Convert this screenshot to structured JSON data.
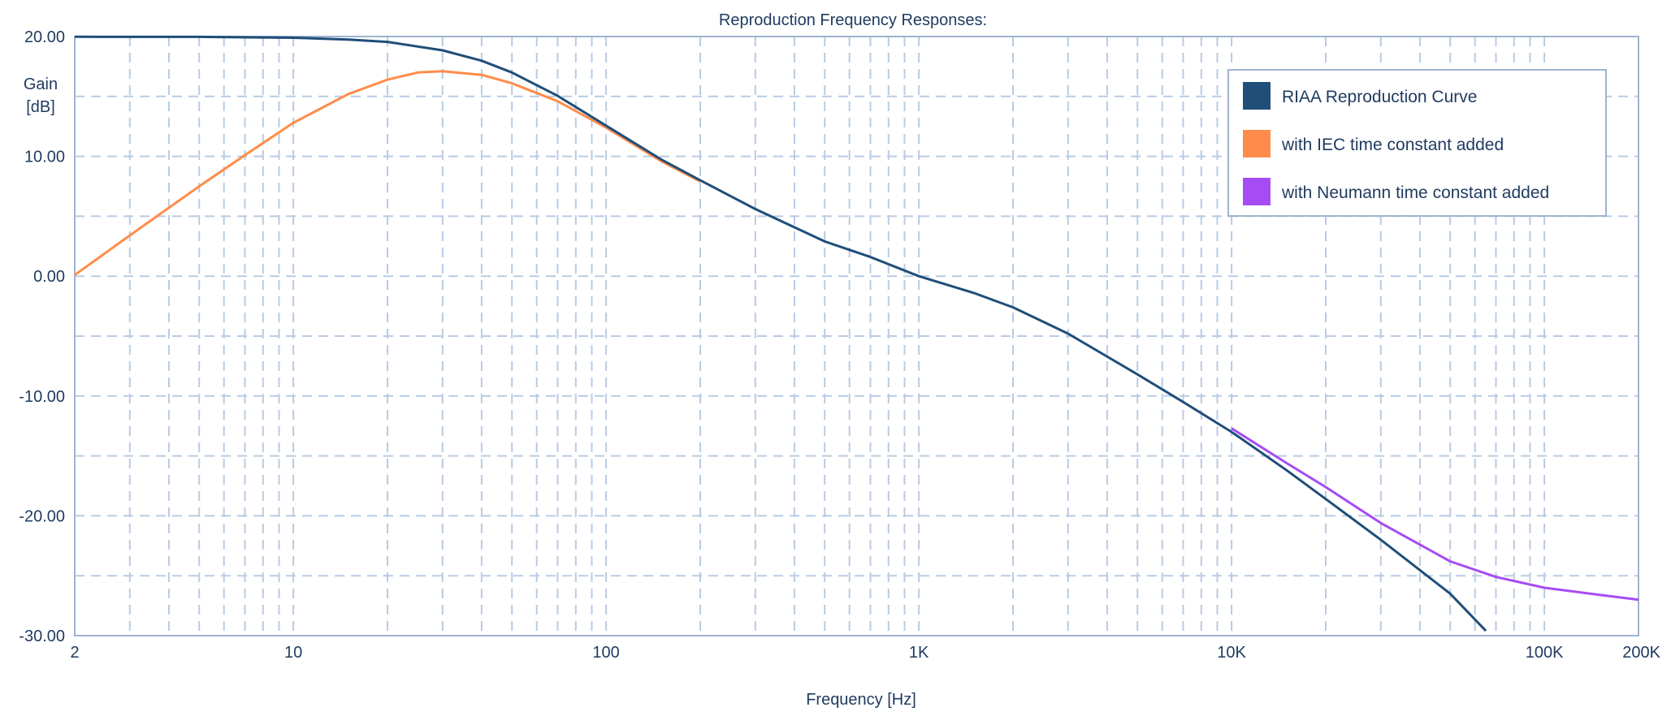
{
  "chart_data": {
    "type": "line",
    "title": "Reproduction Frequency Responses:",
    "xlabel": "Frequency [Hz]",
    "ylabel_line1": "Gain",
    "ylabel_line2": "[dB]",
    "x_scale": "log",
    "xlim": [
      2,
      200000
    ],
    "ylim": [
      -30,
      20
    ],
    "grid": true,
    "legend_position": "top-right",
    "x_tick_labels": [
      {
        "value": 2,
        "label": "2"
      },
      {
        "value": 10,
        "label": "10"
      },
      {
        "value": 100,
        "label": "100"
      },
      {
        "value": 1000,
        "label": "1K"
      },
      {
        "value": 10000,
        "label": "10K"
      },
      {
        "value": 100000,
        "label": "100K"
      },
      {
        "value": 200000,
        "label": "200K"
      }
    ],
    "y_tick_labels": [
      {
        "value": 20,
        "label": "20.00"
      },
      {
        "value": 10,
        "label": "10.00"
      },
      {
        "value": 0,
        "label": "0.00"
      },
      {
        "value": -10,
        "label": "-10.00"
      },
      {
        "value": -20,
        "label": "-20.00"
      },
      {
        "value": -30,
        "label": "-30.00"
      }
    ],
    "series": [
      {
        "name": "RIAA Reproduction Curve",
        "color": "#1f4e79",
        "x": [
          2,
          5,
          10,
          15,
          20,
          30,
          40,
          50,
          70,
          100,
          150,
          200,
          300,
          500,
          700,
          1000,
          1500,
          2000,
          3000,
          5000,
          7000,
          10000,
          15000,
          20000,
          30000,
          50000,
          65000
        ],
        "y": [
          19.98,
          19.97,
          19.9,
          19.75,
          19.55,
          18.85,
          17.98,
          17.0,
          15.05,
          12.56,
          9.74,
          8.0,
          5.6,
          2.9,
          1.6,
          0.0,
          -1.4,
          -2.6,
          -4.8,
          -8.2,
          -10.5,
          -13.0,
          -16.2,
          -18.6,
          -22.0,
          -26.5,
          -29.6
        ]
      },
      {
        "name": "with IEC time constant added",
        "color": "#ff8c4a",
        "x": [
          2,
          3,
          5,
          7,
          10,
          15,
          20,
          25,
          30,
          40,
          50,
          70,
          100,
          150,
          200
        ],
        "y": [
          0.1,
          3.4,
          7.5,
          10.1,
          12.8,
          15.2,
          16.4,
          17.0,
          17.1,
          16.8,
          16.1,
          14.6,
          12.4,
          9.6,
          7.9
        ]
      },
      {
        "name": "with Neumann time constant added",
        "color": "#a54cf5",
        "x": [
          10000,
          15000,
          20000,
          30000,
          50000,
          70000,
          100000,
          150000,
          200000
        ],
        "y": [
          -12.7,
          -15.6,
          -17.6,
          -20.6,
          -23.8,
          -25.1,
          -26.0,
          -26.6,
          -27.0
        ]
      }
    ]
  }
}
